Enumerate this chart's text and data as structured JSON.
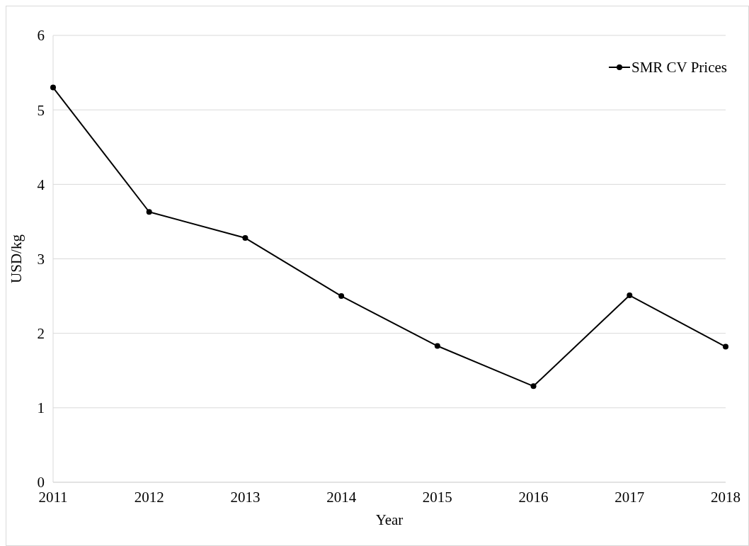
{
  "chart_data": {
    "type": "line",
    "xlabel": "Year",
    "ylabel": "USD/kg",
    "categories": [
      "2011",
      "2012",
      "2013",
      "2014",
      "2015",
      "2016",
      "2017",
      "2018"
    ],
    "series": [
      {
        "name": "SMR CV Prices",
        "color": "#000000",
        "values": [
          5.3,
          3.63,
          3.28,
          2.5,
          1.83,
          1.29,
          2.51,
          1.82
        ]
      }
    ],
    "ylim": [
      0,
      6
    ],
    "yticks": [
      0,
      1,
      2,
      3,
      4,
      5,
      6
    ],
    "grid": "y",
    "legend": "top right",
    "marker": "circle",
    "line_style": "solid"
  }
}
